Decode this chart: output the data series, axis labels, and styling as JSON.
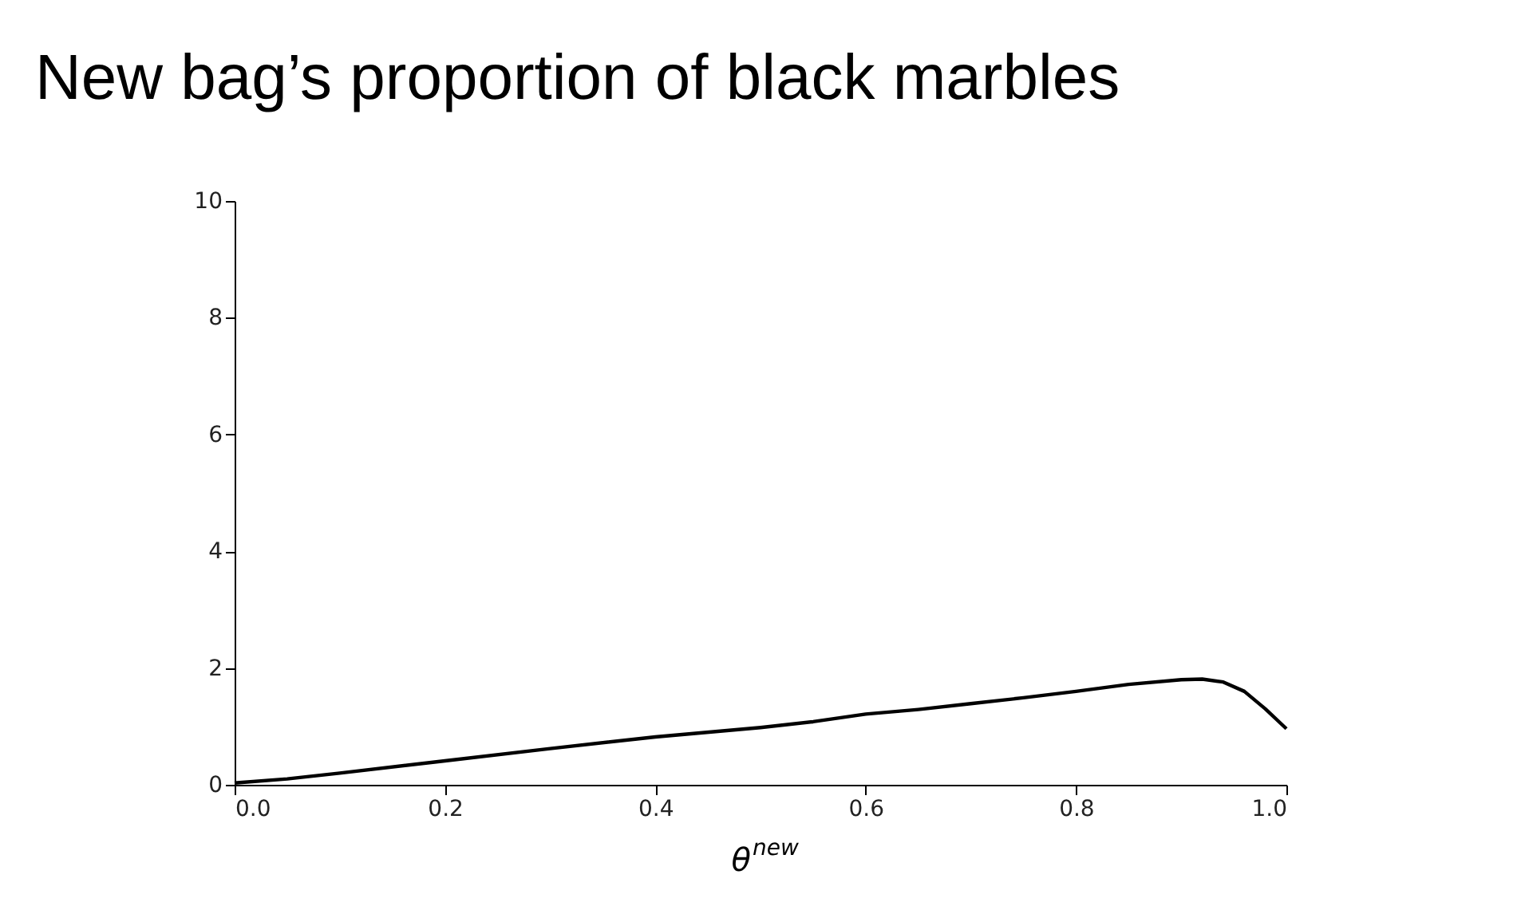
{
  "chart_data": {
    "type": "line",
    "title": "New bag’s proportion of black marbles",
    "xlabel": "θ$^{new}$",
    "x": [
      0,
      0.05,
      0.1,
      0.2,
      0.3,
      0.4,
      0.5,
      0.55,
      0.6,
      0.65,
      0.7,
      0.75,
      0.8,
      0.85,
      0.9,
      0.92,
      0.94,
      0.96,
      0.98,
      1.0
    ],
    "series": [
      {
        "color": "#000000",
        "values": [
          0.03,
          0.1,
          0.2,
          0.41,
          0.62,
          0.82,
          0.98,
          1.08,
          1.21,
          1.29,
          1.39,
          1.49,
          1.6,
          1.72,
          1.8,
          1.81,
          1.76,
          1.6,
          1.3,
          0.96
        ]
      }
    ],
    "xlim": [
      0,
      1
    ],
    "xticks": [
      {
        "value": 0,
        "label": "0.0"
      },
      0.2,
      0.4,
      0.6,
      0.8,
      {
        "value": 1,
        "label": "1.0"
      }
    ],
    "ylim": [
      0,
      10
    ],
    "yticks": [
      0,
      2,
      4,
      6,
      8,
      10
    ],
    "grid": false,
    "marker": "none",
    "line_style": "solid"
  }
}
